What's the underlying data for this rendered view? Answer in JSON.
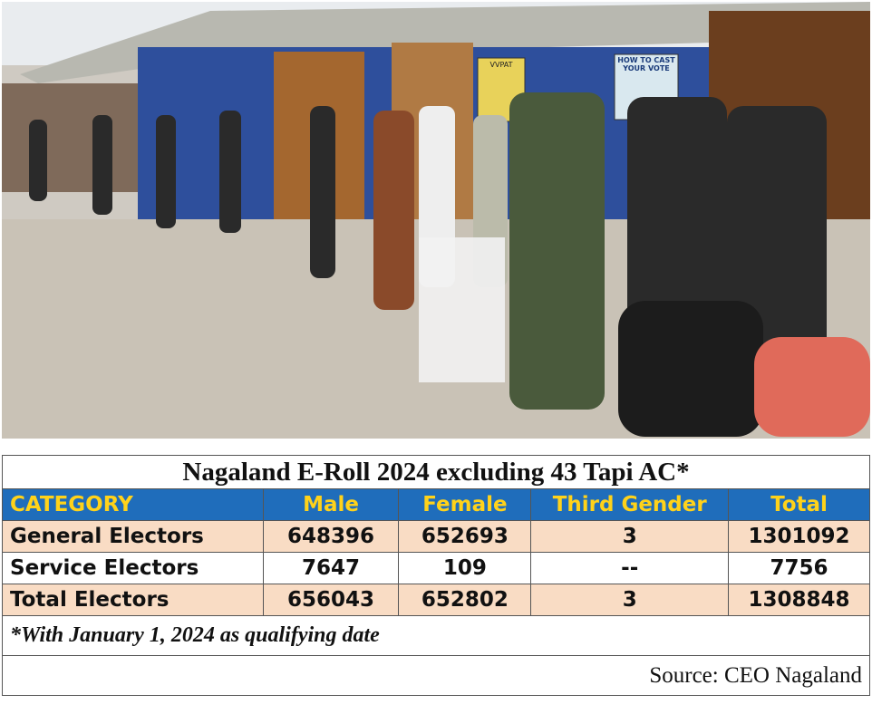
{
  "photo": {
    "signs": [
      "VVPAT",
      "HOW TO CAST YOUR VOTE"
    ]
  },
  "table": {
    "title": "Nagaland E-Roll 2024 excluding 43 Tapi AC*",
    "header": [
      "CATEGORY",
      "Male",
      "Female",
      "Third Gender",
      "Total"
    ],
    "rows": [
      [
        "General Electors",
        648396,
        652693,
        3,
        1301092
      ],
      [
        "Service Electors",
        7647,
        109,
        "--",
        7756
      ],
      [
        "Total Electors",
        656043,
        652802,
        3,
        1308848
      ]
    ],
    "footnote": "*With January 1, 2024 as qualifying date",
    "source": "Source: CEO Nagaland"
  }
}
